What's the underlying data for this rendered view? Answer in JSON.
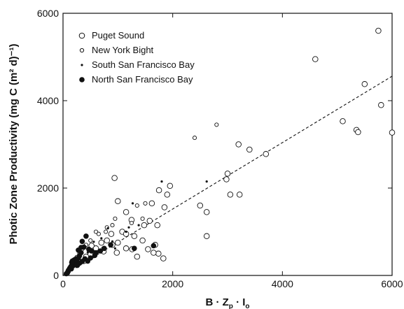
{
  "chart_data": {
    "type": "scatter",
    "xlabel": "B · Z_p · I_o",
    "xlabel_parts": {
      "main": "B · Z",
      "sub": "p",
      "rest": " · I",
      "sub2": "o"
    },
    "ylabel": "Photic Zone Productivity (mg C (m² d)⁻¹)",
    "xlim": [
      0,
      6000
    ],
    "ylim": [
      0,
      6000
    ],
    "xticks": [
      0,
      2000,
      4000,
      6000
    ],
    "yticks": [
      0,
      2000,
      4000,
      6000
    ],
    "xtick_labels": [
      "0",
      "2000",
      "4000",
      "6000"
    ],
    "ytick_labels": [
      "0",
      "2000",
      "4000",
      "6000"
    ],
    "grid": false,
    "legend_placement": "top-left",
    "regression": {
      "style": "dashed",
      "x": [
        0,
        6000
      ],
      "y": [
        0,
        4560
      ]
    },
    "series": [
      {
        "name": "Puget Sound",
        "marker": "open-circle-large",
        "points": [
          [
            5750,
            5600
          ],
          [
            4600,
            4950
          ],
          [
            5500,
            4380
          ],
          [
            5800,
            3900
          ],
          [
            6000,
            3270
          ],
          [
            5100,
            3530
          ],
          [
            5350,
            3330
          ],
          [
            5380,
            3280
          ],
          [
            3700,
            2780
          ],
          [
            3400,
            2880
          ],
          [
            3200,
            3000
          ],
          [
            3000,
            2330
          ],
          [
            2980,
            2200
          ],
          [
            3050,
            1850
          ],
          [
            3220,
            1850
          ],
          [
            2500,
            1600
          ],
          [
            2620,
            1450
          ],
          [
            2620,
            900
          ],
          [
            1950,
            2050
          ],
          [
            1750,
            1950
          ],
          [
            1900,
            1850
          ],
          [
            1620,
            1650
          ],
          [
            1850,
            1560
          ],
          [
            1580,
            1250
          ],
          [
            1480,
            1150
          ],
          [
            1720,
            1150
          ],
          [
            1000,
            1700
          ],
          [
            940,
            2230
          ],
          [
            1150,
            1450
          ],
          [
            1250,
            1270
          ],
          [
            1080,
            1000
          ],
          [
            1150,
            950
          ],
          [
            1300,
            900
          ],
          [
            1450,
            800
          ],
          [
            1680,
            700
          ],
          [
            1740,
            500
          ],
          [
            1830,
            390
          ],
          [
            1650,
            520
          ],
          [
            1550,
            600
          ],
          [
            1350,
            430
          ],
          [
            1260,
            600
          ],
          [
            1150,
            620
          ],
          [
            1000,
            750
          ],
          [
            980,
            520
          ],
          [
            880,
            950
          ],
          [
            800,
            800
          ],
          [
            900,
            700
          ],
          [
            740,
            550
          ],
          [
            700,
            750
          ],
          [
            600,
            620
          ],
          [
            520,
            680
          ],
          [
            500,
            480
          ],
          [
            420,
            430
          ],
          [
            380,
            330
          ]
        ]
      },
      {
        "name": "New York Bight",
        "marker": "open-circle-small",
        "points": [
          [
            2800,
            3450
          ],
          [
            2400,
            3150
          ],
          [
            1350,
            1600
          ],
          [
            1500,
            1650
          ],
          [
            1450,
            1300
          ],
          [
            1250,
            1200
          ],
          [
            950,
            1300
          ],
          [
            900,
            1150
          ],
          [
            800,
            1100
          ],
          [
            780,
            1000
          ],
          [
            650,
            950
          ],
          [
            600,
            1000
          ],
          [
            500,
            800
          ],
          [
            420,
            700
          ],
          [
            350,
            600
          ],
          [
            300,
            500
          ],
          [
            250,
            420
          ],
          [
            220,
            380
          ],
          [
            180,
            300
          ],
          [
            150,
            240
          ],
          [
            120,
            180
          ]
        ]
      },
      {
        "name": "South San Francisco Bay",
        "marker": "dot-small",
        "points": [
          [
            1800,
            2150
          ],
          [
            2620,
            2150
          ],
          [
            1270,
            1650
          ],
          [
            1150,
            1000
          ],
          [
            1200,
            1100
          ],
          [
            1380,
            1150
          ],
          [
            820,
            1080
          ],
          [
            700,
            850
          ],
          [
            900,
            780
          ],
          [
            950,
            620
          ],
          [
            720,
            630
          ],
          [
            560,
            770
          ],
          [
            620,
            500
          ],
          [
            560,
            420
          ],
          [
            450,
            530
          ],
          [
            380,
            400
          ],
          [
            330,
            350
          ],
          [
            280,
            300
          ],
          [
            250,
            330
          ],
          [
            200,
            200
          ],
          [
            160,
            120
          ],
          [
            120,
            80
          ]
        ]
      },
      {
        "name": "North San Francisco Bay",
        "marker": "filled-circle",
        "points": [
          [
            1650,
            680
          ],
          [
            1300,
            620
          ],
          [
            870,
            700
          ],
          [
            750,
            620
          ],
          [
            680,
            560
          ],
          [
            600,
            520
          ],
          [
            580,
            460
          ],
          [
            520,
            560
          ],
          [
            470,
            600
          ],
          [
            420,
            900
          ],
          [
            350,
            780
          ],
          [
            380,
            650
          ],
          [
            330,
            520
          ],
          [
            300,
            450
          ],
          [
            280,
            400
          ],
          [
            250,
            350
          ],
          [
            220,
            300
          ],
          [
            200,
            260
          ],
          [
            180,
            220
          ],
          [
            160,
            300
          ],
          [
            140,
            200
          ],
          [
            120,
            160
          ],
          [
            100,
            120
          ],
          [
            90,
            90
          ],
          [
            80,
            60
          ],
          [
            60,
            40
          ],
          [
            200,
            350
          ],
          [
            240,
            380
          ],
          [
            300,
            280
          ],
          [
            350,
            320
          ],
          [
            400,
            380
          ],
          [
            450,
            330
          ],
          [
            500,
            400
          ],
          [
            260,
            230
          ],
          [
            150,
            150
          ],
          [
            330,
            640
          ],
          [
            280,
            580
          ],
          [
            170,
            330
          ]
        ]
      }
    ]
  },
  "legend": [
    {
      "label": "Puget Sound",
      "marker": "open-circle-large"
    },
    {
      "label": "New York Bight",
      "marker": "open-circle-small"
    },
    {
      "label": "South San Francisco Bay",
      "marker": "dot-small"
    },
    {
      "label": "North San Francisco Bay",
      "marker": "filled-circle"
    }
  ]
}
